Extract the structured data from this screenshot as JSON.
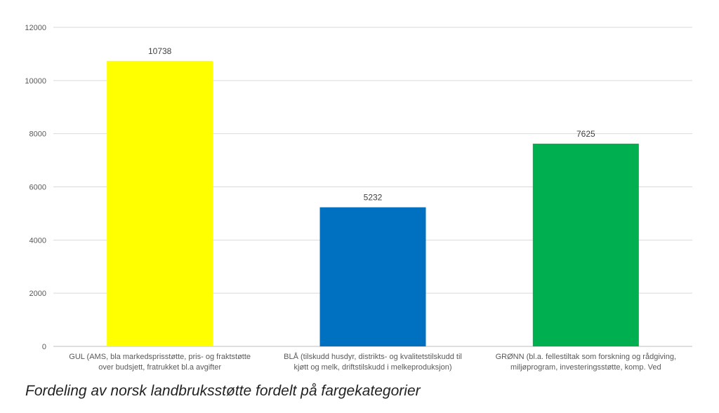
{
  "chart_data": {
    "type": "bar",
    "title": "",
    "xlabel": "",
    "ylabel": "",
    "ylim": [
      0,
      12000
    ],
    "yticks": [
      0,
      2000,
      4000,
      6000,
      8000,
      10000,
      12000
    ],
    "grid": true,
    "legend": "none",
    "categories": [
      {
        "lines": [
          "GUL (AMS, bla markedsprisstøtte, pris- og fraktstøtte",
          "over budsjett, fratrukket bl.a avgifter"
        ],
        "value": 10738,
        "color": "#ffff00"
      },
      {
        "lines": [
          "BLÅ (tilskudd husdyr, distrikts- og kvalitetstilskudd til",
          "kjøtt og melk, driftstilskudd i melkeproduksjon)"
        ],
        "value": 5232,
        "color": "#0070c0"
      },
      {
        "lines": [
          "GRØNN (bl.a. fellestiltak som forskning og rådgiving,",
          "miljøprogram, investeringsstøtte, komp. Ved"
        ],
        "value": 7625,
        "color": "#00b050"
      }
    ]
  },
  "caption": "Fordeling av norsk landbruksstøtte fordelt på fargekategorier"
}
